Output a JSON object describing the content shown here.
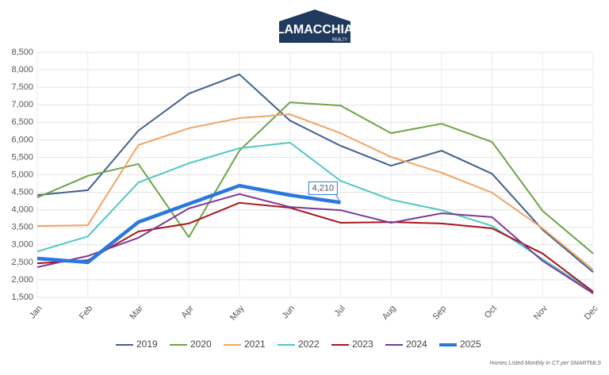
{
  "logo": {
    "name": "LAMACCHIA",
    "tagline": "REALTY"
  },
  "chart_data": {
    "type": "line",
    "categories": [
      "Jan",
      "Feb",
      "Mar",
      "Apr",
      "May",
      "Jun",
      "Jul",
      "Aug",
      "Sep",
      "Oct",
      "Nov",
      "Dec"
    ],
    "series": [
      {
        "name": "2019",
        "color": "#41608a",
        "width": 2,
        "values": [
          4420,
          4560,
          6260,
          7320,
          7870,
          6550,
          5830,
          5260,
          5690,
          5030,
          3430,
          2220
        ]
      },
      {
        "name": "2020",
        "color": "#6ba545",
        "width": 2,
        "values": [
          4350,
          4970,
          5310,
          3220,
          5690,
          7070,
          6980,
          6190,
          6460,
          5940,
          3970,
          2750
        ]
      },
      {
        "name": "2021",
        "color": "#f0a465",
        "width": 2,
        "values": [
          3540,
          3560,
          5850,
          6330,
          6620,
          6730,
          6190,
          5510,
          5060,
          4490,
          3470,
          2290
        ]
      },
      {
        "name": "2022",
        "color": "#4ec8c4",
        "width": 2,
        "values": [
          2810,
          3240,
          4780,
          5330,
          5760,
          5920,
          4830,
          4290,
          3990,
          3540,
          2590,
          1660
        ]
      },
      {
        "name": "2023",
        "color": "#a8151e",
        "width": 2,
        "values": [
          2470,
          2560,
          3380,
          3610,
          4200,
          4060,
          3630,
          3650,
          3610,
          3470,
          2750,
          1660
        ]
      },
      {
        "name": "2024",
        "color": "#7b3a97",
        "width": 2,
        "values": [
          2360,
          2680,
          3200,
          4040,
          4450,
          4080,
          3990,
          3630,
          3900,
          3790,
          2540,
          1610
        ]
      },
      {
        "name": "2025",
        "color": "#2a77de",
        "width": 4.5,
        "values": [
          2610,
          2500,
          3650,
          4170,
          4690,
          4420,
          4210,
          null,
          null,
          null,
          null,
          null
        ],
        "value_labels": [
          null,
          null,
          null,
          null,
          null,
          null,
          "4,210",
          null,
          null,
          null,
          null,
          null
        ]
      }
    ],
    "ylim": [
      1500,
      8500
    ],
    "yticks": [
      {
        "value": 1500,
        "label": "1,500"
      },
      {
        "value": 2000,
        "label": "2,000"
      },
      {
        "value": 2500,
        "label": "2,500"
      },
      {
        "value": 3000,
        "label": "3,000"
      },
      {
        "value": 3500,
        "label": "3,500"
      },
      {
        "value": 4000,
        "label": "4,000"
      },
      {
        "value": 4500,
        "label": "4,500"
      },
      {
        "value": 5000,
        "label": "5,000"
      },
      {
        "value": 5500,
        "label": "5,500"
      },
      {
        "value": 6000,
        "label": "6,000"
      },
      {
        "value": 6500,
        "label": "6,500"
      },
      {
        "value": 7000,
        "label": "7,000"
      },
      {
        "value": 7500,
        "label": "7,500"
      },
      {
        "value": 8000,
        "label": "8,000"
      },
      {
        "value": 8500,
        "label": "8,500"
      }
    ],
    "grid": true,
    "legend": "bottom",
    "source": "Homes Listed Monthly in CT per SMARTMLS"
  }
}
